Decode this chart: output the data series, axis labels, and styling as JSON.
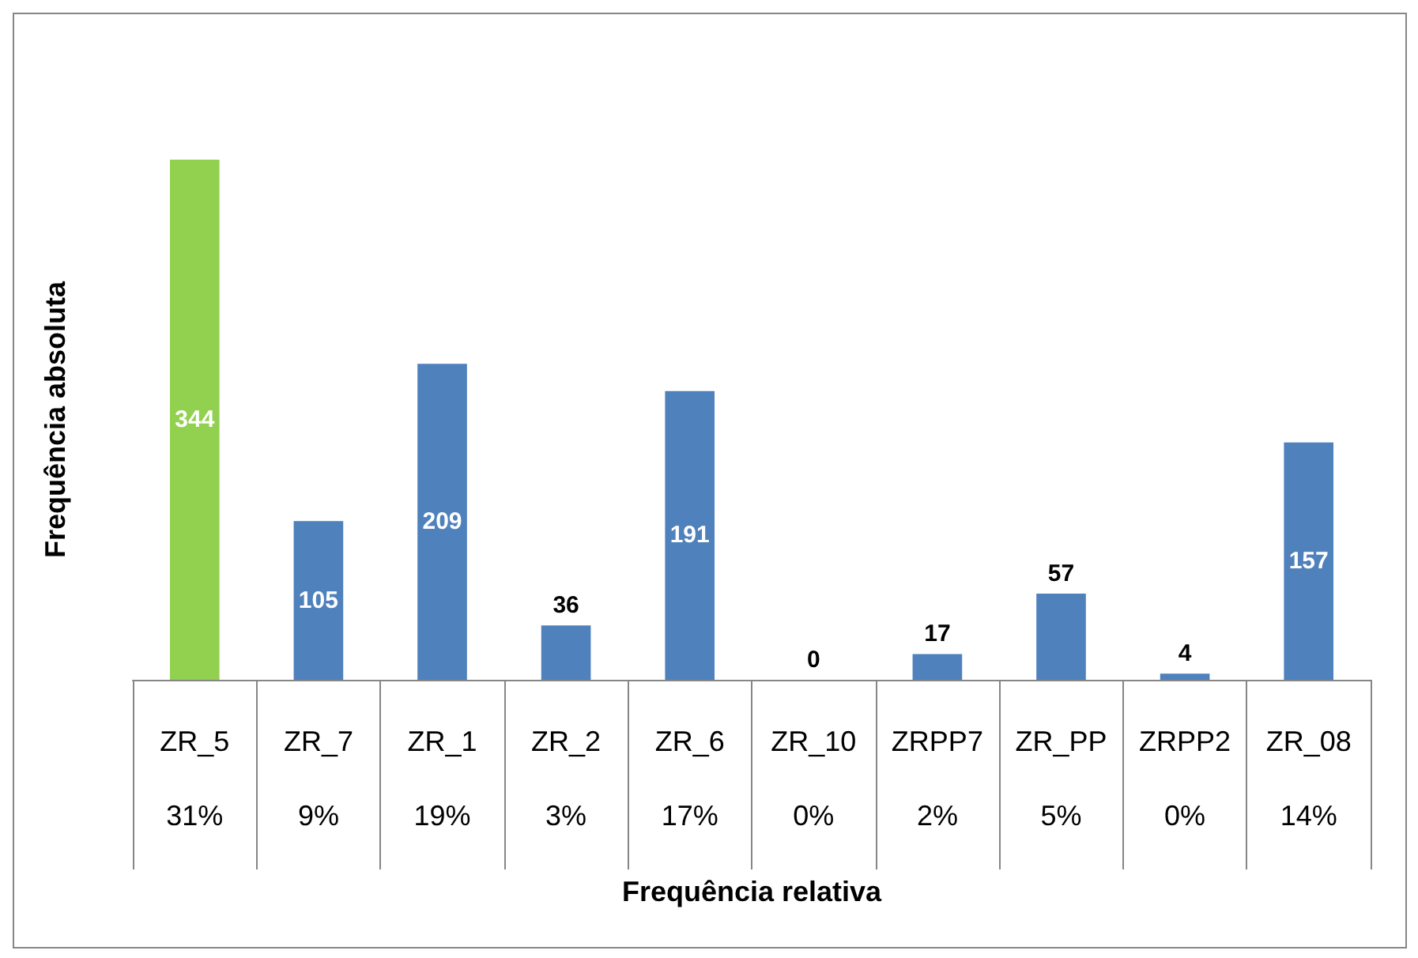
{
  "chart_data": {
    "type": "bar",
    "xlabel": "Frequência relativa",
    "ylabel": "Frequência absoluta",
    "categories": [
      "ZR_5",
      "ZR_7",
      "ZR_1",
      "ZR_2",
      "ZR_6",
      "ZR_10",
      "ZRPP7",
      "ZR_PP",
      "ZRPP2",
      "ZR_08"
    ],
    "values": [
      344,
      105,
      209,
      36,
      191,
      0,
      17,
      57,
      4,
      157
    ],
    "colors": [
      "#92d050",
      "#4f81bd",
      "#4f81bd",
      "#4f81bd",
      "#4f81bd",
      "#4f81bd",
      "#4f81bd",
      "#4f81bd",
      "#4f81bd",
      "#4f81bd"
    ],
    "data_labels": true,
    "annotations": [
      "31%",
      "9%",
      "19%",
      "3%",
      "17%",
      "0%",
      "2%",
      "5%",
      "0%",
      "14%"
    ]
  }
}
